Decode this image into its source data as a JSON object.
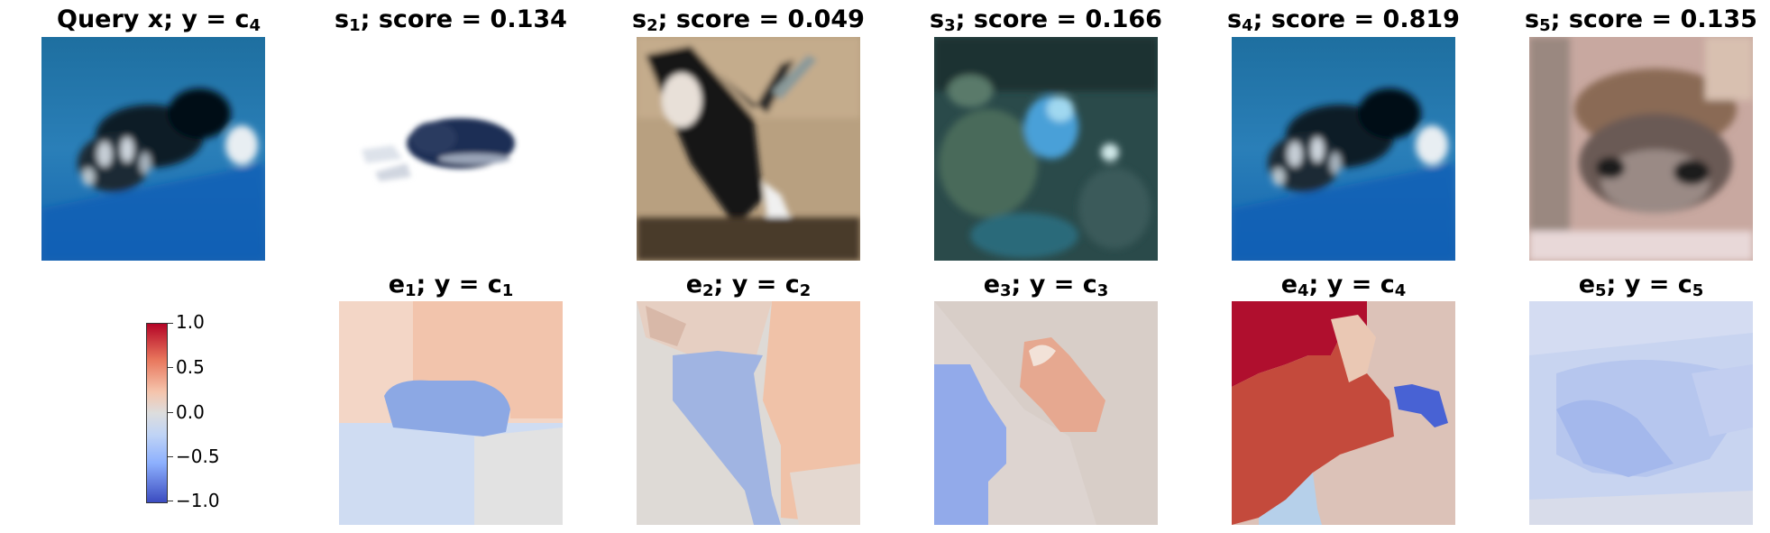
{
  "top_row": [
    {
      "title_main": "Query x; y = c",
      "title_sub": "4"
    },
    {
      "title_main": "s",
      "title_sub": "1",
      "title_tail": "; score = 0.134"
    },
    {
      "title_main": "s",
      "title_sub": "2",
      "title_tail": "; score = 0.049"
    },
    {
      "title_main": "s",
      "title_sub": "3",
      "title_tail": "; score = 0.166"
    },
    {
      "title_main": "s",
      "title_sub": "4",
      "title_tail": "; score = 0.819"
    },
    {
      "title_main": "s",
      "title_sub": "5",
      "title_tail": "; score = 0.135"
    }
  ],
  "bottom_row": [
    {
      "title_main": "e",
      "title_sub": "1",
      "title_mid": "; y = c",
      "title_sub2": "1"
    },
    {
      "title_main": "e",
      "title_sub": "2",
      "title_mid": "; y = c",
      "title_sub2": "2"
    },
    {
      "title_main": "e",
      "title_sub": "3",
      "title_mid": "; y = c",
      "title_sub2": "3"
    },
    {
      "title_main": "e",
      "title_sub": "4",
      "title_mid": "; y = c",
      "title_sub2": "4"
    },
    {
      "title_main": "e",
      "title_sub": "5",
      "title_mid": "; y = c",
      "title_sub2": "5"
    }
  ],
  "colorbar": {
    "colormap": "coolwarm",
    "min": -1.0,
    "max": 1.0,
    "tick_labels": [
      "1.0",
      "0.5",
      "0.0",
      "−0.5",
      "−1.0"
    ]
  }
}
